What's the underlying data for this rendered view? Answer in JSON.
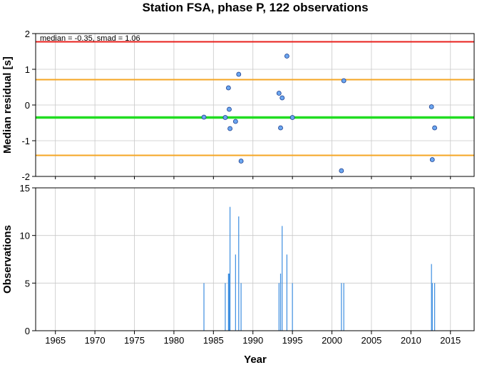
{
  "chart_data": [
    {
      "type": "scatter",
      "title": "Station FSA, phase P, 122 observations",
      "ylabel": "Median residual [s]",
      "annotation": "median = -0.35, smad = 1.06",
      "xlim": [
        1962.5,
        2018
      ],
      "ylim": [
        -2,
        2
      ],
      "x_ticks": [
        "1965",
        "1970",
        "1975",
        "1980",
        "1985",
        "1990",
        "1995",
        "2000",
        "2005",
        "2010",
        "2015"
      ],
      "y_ticks": [
        "-2",
        "-1",
        "0",
        "1",
        "2"
      ],
      "grid": true,
      "reference_lines": [
        {
          "y": 1.77,
          "color": "#e8201c"
        },
        {
          "y": 0.71,
          "color": "#f5a623"
        },
        {
          "y": -0.35,
          "color": "#22dd22"
        },
        {
          "y": -1.41,
          "color": "#f5a623"
        }
      ],
      "points": [
        {
          "x": 1983.8,
          "y": -0.34
        },
        {
          "x": 1986.5,
          "y": -0.35
        },
        {
          "x": 1986.9,
          "y": 0.48
        },
        {
          "x": 1987.0,
          "y": -0.12
        },
        {
          "x": 1987.1,
          "y": -0.66
        },
        {
          "x": 1987.8,
          "y": -0.46
        },
        {
          "x": 1988.2,
          "y": 0.86
        },
        {
          "x": 1988.5,
          "y": -1.57
        },
        {
          "x": 1993.3,
          "y": 0.33
        },
        {
          "x": 1993.5,
          "y": -0.64
        },
        {
          "x": 1993.7,
          "y": 0.2
        },
        {
          "x": 1994.3,
          "y": 1.37
        },
        {
          "x": 1995.0,
          "y": -0.35
        },
        {
          "x": 2001.2,
          "y": -1.84
        },
        {
          "x": 2001.5,
          "y": 0.68
        },
        {
          "x": 2012.6,
          "y": -0.05
        },
        {
          "x": 2012.7,
          "y": -1.53
        },
        {
          "x": 2013.0,
          "y": -0.64
        }
      ],
      "point_color": "#6aa6f0"
    },
    {
      "type": "bar",
      "xlabel": "Year",
      "ylabel": "Observations",
      "xlim": [
        1962.5,
        2018
      ],
      "ylim": [
        0,
        15
      ],
      "x_ticks": [
        "1965",
        "1970",
        "1975",
        "1980",
        "1985",
        "1990",
        "1995",
        "2000",
        "2005",
        "2010",
        "2015"
      ],
      "y_ticks": [
        "0",
        "5",
        "10",
        "15"
      ],
      "grid": true,
      "bar_color": "#3d8ee0",
      "x": [
        1983.8,
        1986.5,
        1986.9,
        1987.0,
        1987.1,
        1987.8,
        1988.2,
        1988.5,
        1993.3,
        1993.5,
        1993.7,
        1994.3,
        1995.0,
        2001.2,
        2001.5,
        2012.6,
        2012.7,
        2013.0
      ],
      "values": [
        5,
        5,
        6,
        6,
        13,
        8,
        12,
        5,
        5,
        6,
        11,
        8,
        5,
        5,
        5,
        7,
        5,
        5
      ]
    }
  ]
}
